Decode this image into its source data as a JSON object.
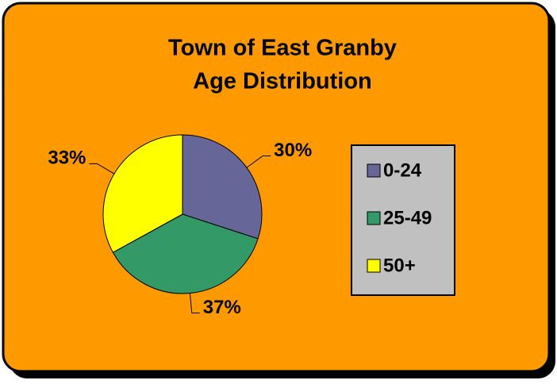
{
  "chart_data": {
    "type": "pie",
    "title": [
      "Town of East Granby",
      "Age Distribution"
    ],
    "categories": [
      "0-24",
      "25-49",
      "50+"
    ],
    "values": [
      30,
      37,
      33
    ],
    "value_labels": [
      "30%",
      "37%",
      "33%"
    ],
    "colors": [
      "#666699",
      "#339966",
      "#ffff00"
    ],
    "legend": "right"
  }
}
